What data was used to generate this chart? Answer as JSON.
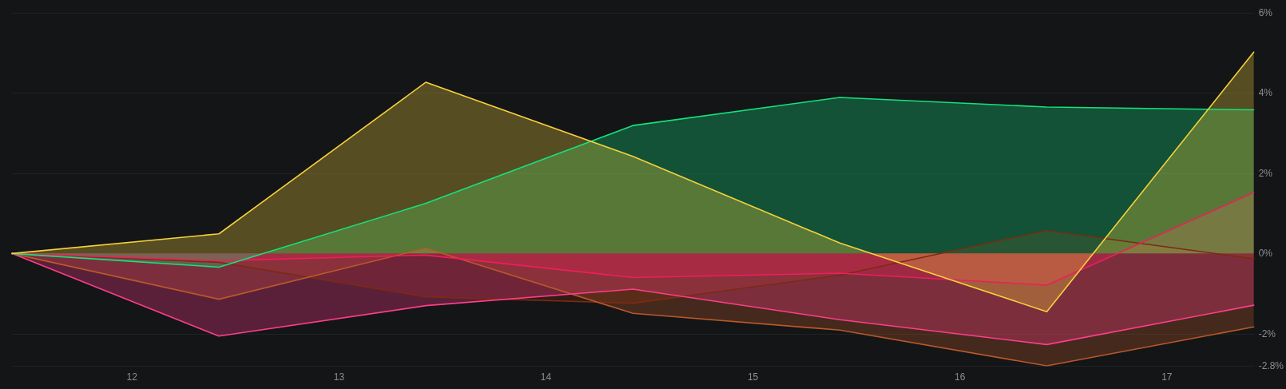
{
  "chart_data": {
    "type": "area",
    "x": [
      11.42,
      12.42,
      13.42,
      14.42,
      15.42,
      16.42,
      17.42
    ],
    "xlim": [
      11.42,
      17.42
    ],
    "xticks": [
      12,
      13,
      14,
      15,
      16,
      17
    ],
    "ylim": [
      -2.8,
      6
    ],
    "yticks": [
      {
        "value": -2.8,
        "label": "-2.8%"
      },
      {
        "value": -2,
        "label": "-2%"
      },
      {
        "value": 0,
        "label": "0%"
      },
      {
        "value": 2,
        "label": "2%"
      },
      {
        "value": 4,
        "label": "4%"
      },
      {
        "value": 6,
        "label": "6%"
      }
    ],
    "grid": "y",
    "marker": "none",
    "series": [
      {
        "color": "#7c2b12",
        "values": [
          0,
          -0.22,
          -1.08,
          -1.24,
          -0.54,
          0.57,
          -0.13
        ]
      },
      {
        "color": "#b9592a",
        "values": [
          0,
          -1.14,
          0.13,
          -1.49,
          -1.91,
          -2.8,
          -1.83
        ]
      },
      {
        "color": "#ff3d89",
        "values": [
          0,
          -2.06,
          -1.3,
          -0.89,
          -1.65,
          -2.27,
          -1.29
        ]
      },
      {
        "color": "#ec1f5b",
        "values": [
          0,
          -0.18,
          -0.04,
          -0.6,
          -0.49,
          -0.79,
          1.52
        ]
      },
      {
        "color": "#14e27d",
        "values": [
          0,
          -0.34,
          1.25,
          3.19,
          3.89,
          3.65,
          3.58
        ]
      },
      {
        "color": "#f5d13c",
        "values": [
          0,
          0.49,
          4.27,
          2.42,
          0.26,
          -1.45,
          5.02
        ]
      }
    ]
  }
}
